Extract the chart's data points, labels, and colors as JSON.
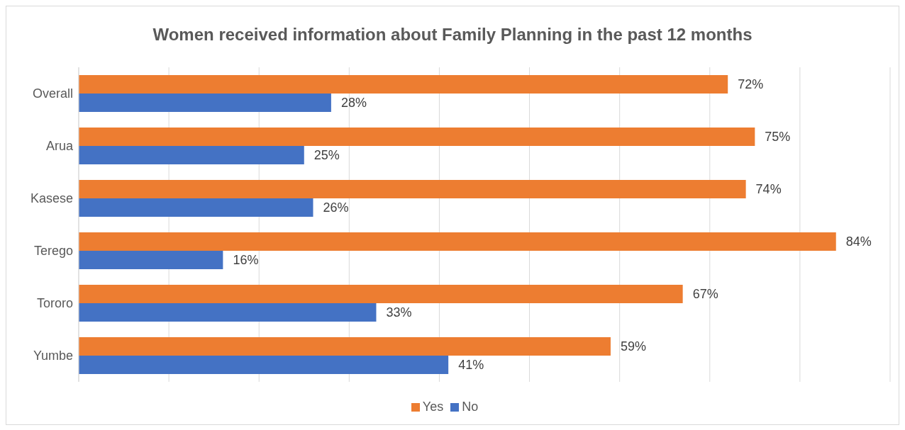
{
  "chart_data": {
    "type": "bar",
    "orientation": "horizontal",
    "title": "Women received information about Family Planning in the past 12 months",
    "categories": [
      "Overall",
      "Arua",
      "Kasese",
      "Terego",
      "Tororo",
      "Yumbe"
    ],
    "series": [
      {
        "name": "Yes",
        "color": "#ed7d31",
        "values": [
          72,
          75,
          74,
          84,
          67,
          59
        ],
        "value_labels": [
          "72%",
          "75%",
          "74%",
          "84%",
          "67%",
          "59%"
        ]
      },
      {
        "name": "No",
        "color": "#4472c4",
        "values": [
          28,
          25,
          26,
          16,
          33,
          41
        ],
        "value_labels": [
          "28%",
          "25%",
          "26%",
          "16%",
          "33%",
          "41%"
        ]
      }
    ],
    "xlim": [
      0,
      90
    ],
    "tick_labels": "y",
    "grid": "x",
    "legend": "bottom"
  }
}
